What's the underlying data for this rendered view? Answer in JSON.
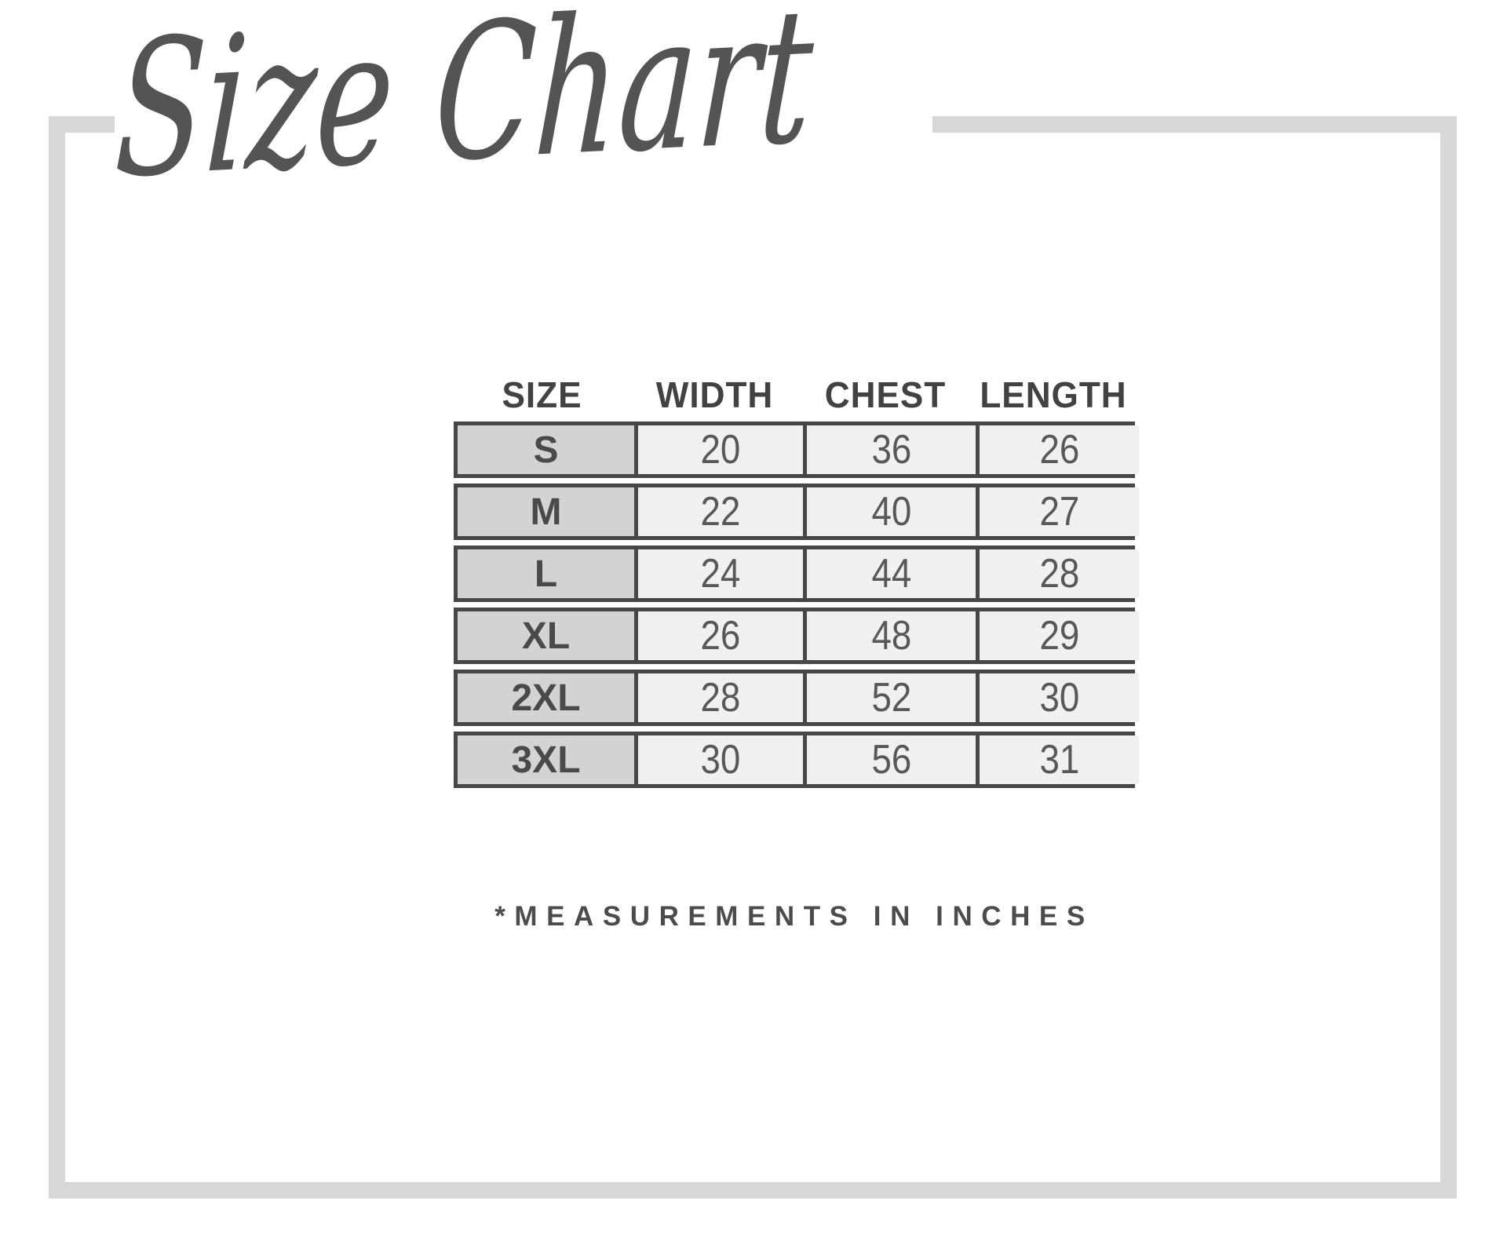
{
  "title": {
    "text": "Size Chart"
  },
  "size_table": {
    "headers": [
      "SIZE",
      "WIDTH",
      "CHEST",
      "LENGTH"
    ],
    "rows": [
      {
        "size": "S",
        "width": "20",
        "chest": "36",
        "length": "26"
      },
      {
        "size": "M",
        "width": "22",
        "chest": "40",
        "length": "27"
      },
      {
        "size": "L",
        "width": "24",
        "chest": "44",
        "length": "28"
      },
      {
        "size": "XL",
        "width": "26",
        "chest": "48",
        "length": "29"
      },
      {
        "size": "2XL",
        "width": "28",
        "chest": "52",
        "length": "30"
      },
      {
        "size": "3XL",
        "width": "30",
        "chest": "56",
        "length": "31"
      }
    ]
  },
  "footnote": {
    "text": "*MEASUREMENTS IN INCHES"
  },
  "colors": {
    "title_text": "#545454",
    "frame_border": "#d7d7d7",
    "table_border": "#474747",
    "size_column_bg": "#d3d3d3",
    "data_cell_bg": "#f0f0f0",
    "header_text": "#424242",
    "number_text": "#585858",
    "footnote_text": "#4c4c4c"
  },
  "chart_data": {
    "type": "table",
    "title": "Size Chart",
    "columns": [
      "SIZE",
      "WIDTH",
      "CHEST",
      "LENGTH"
    ],
    "rows": [
      [
        "S",
        20,
        36,
        26
      ],
      [
        "M",
        22,
        40,
        27
      ],
      [
        "L",
        24,
        44,
        28
      ],
      [
        "XL",
        26,
        48,
        29
      ],
      [
        "2XL",
        28,
        52,
        30
      ],
      [
        "3XL",
        30,
        56,
        31
      ]
    ],
    "units": "inches",
    "note": "*MEASUREMENTS IN INCHES",
    "layout_hints": {
      "size_column_shaded": true,
      "rows_rendered_as_separate_boxes": true,
      "headers_outside_table": true
    }
  }
}
